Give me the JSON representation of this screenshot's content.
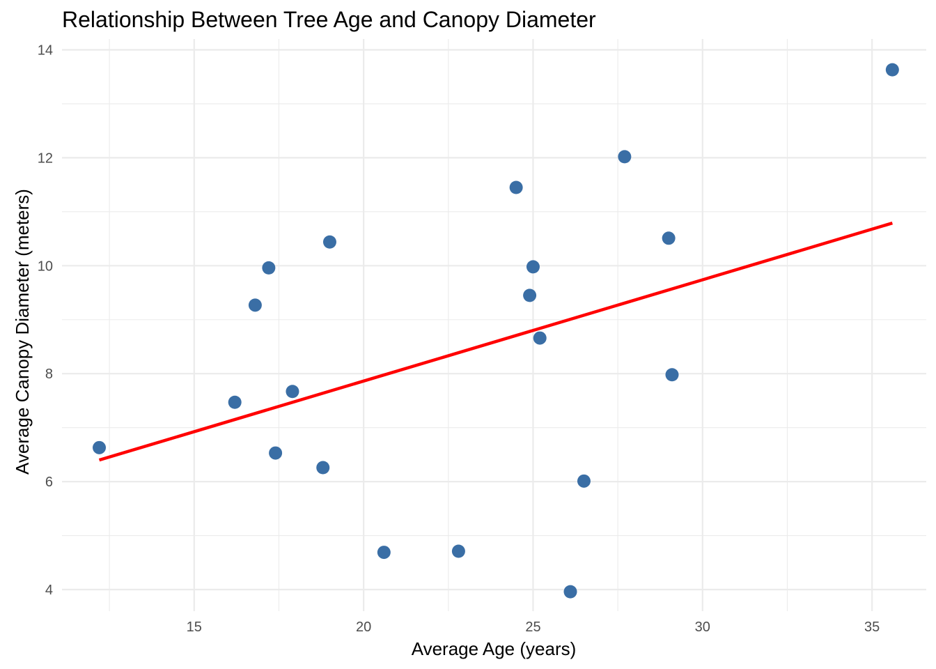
{
  "chart_data": {
    "type": "scatter",
    "title": "Relationship Between Tree Age and Canopy Diameter",
    "xlabel": "Average Age (years)",
    "ylabel": "Average Canopy Diameter (meters)",
    "xlim": [
      11.1,
      36.6
    ],
    "ylim": [
      3.6,
      14.2
    ],
    "xticks": [
      15,
      20,
      25,
      30,
      35
    ],
    "yticks": [
      4,
      6,
      8,
      10,
      12,
      14
    ],
    "xminor": [
      12.5,
      17.5,
      22.5,
      27.5,
      32.5
    ],
    "yminor": [
      5,
      7,
      9,
      11,
      13
    ],
    "grid": true,
    "point_color": "#3a6ea5",
    "trend_color": "#ff0000",
    "series": [
      {
        "x": [
          12.2,
          16.2,
          16.8,
          17.2,
          17.4,
          17.9,
          18.8,
          19.0,
          20.6,
          22.8,
          24.5,
          24.9,
          25.0,
          25.2,
          26.1,
          26.5,
          27.7,
          29.0,
          29.1,
          35.6
        ],
        "y": [
          6.63,
          7.47,
          9.27,
          9.96,
          6.53,
          7.67,
          6.26,
          10.44,
          4.69,
          4.71,
          11.45,
          9.45,
          9.98,
          8.66,
          3.96,
          6.01,
          12.02,
          10.51,
          7.98,
          13.63
        ]
      }
    ],
    "trendline": {
      "x": [
        12.2,
        35.6
      ],
      "y": [
        6.4,
        10.79
      ]
    }
  }
}
